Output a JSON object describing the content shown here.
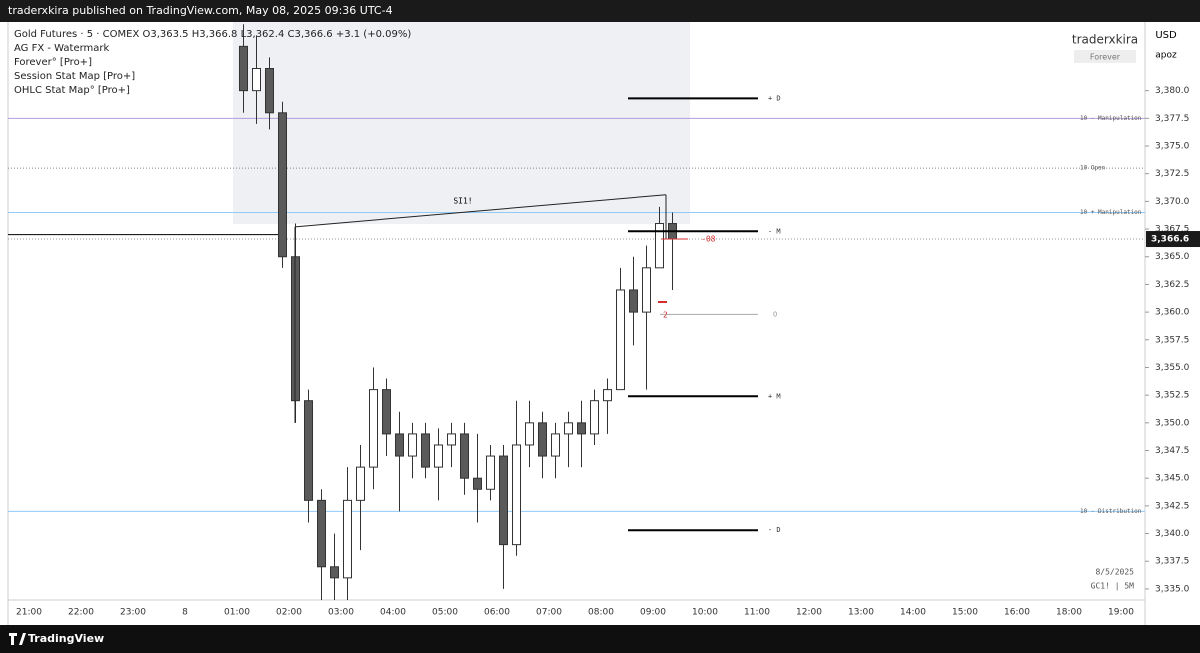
{
  "chart_data": {
    "type": "candlestick",
    "header": "traderxkira published on TradingView.com, May 08, 2025 09:36 UTC-4",
    "legend_lines": [
      "Gold Futures · 5 · COMEX  O3,363.5  H3,366.8  L3,362.4  C3,366.6  +3.1 (+0.09%)",
      "AG FX - Watermark",
      "Forever° [Pro+]",
      "Session Stat Map [Pro+]",
      "OHLC Stat Map° [Pro+]"
    ],
    "watermark": {
      "name": "traderxkira",
      "tag": "Forever"
    },
    "currency": "USD",
    "axis_user": "apoz",
    "footer_date": "8/5/2025",
    "footer_symbol": "GC1! | 5M",
    "brand": "TradingView",
    "ylim": [
      3334.0,
      3386.2
    ],
    "yticks": [
      {
        "value": 3335,
        "label": "3,335.0"
      },
      {
        "value": 3337.5,
        "label": "3,337.5"
      },
      {
        "value": 3340,
        "label": "3,340.0"
      },
      {
        "value": 3342.5,
        "label": "3,342.5"
      },
      {
        "value": 3345,
        "label": "3,345.0"
      },
      {
        "value": 3347.5,
        "label": "3,347.5"
      },
      {
        "value": 3350,
        "label": "3,350.0"
      },
      {
        "value": 3352.5,
        "label": "3,352.5"
      },
      {
        "value": 3355,
        "label": "3,355.0"
      },
      {
        "value": 3357.5,
        "label": "3,357.5"
      },
      {
        "value": 3360,
        "label": "3,360.0"
      },
      {
        "value": 3362.5,
        "label": "3,362.5"
      },
      {
        "value": 3365,
        "label": "3,365.0"
      },
      {
        "value": 3367.5,
        "label": "3,367.5"
      },
      {
        "value": 3370,
        "label": "3,370.0"
      },
      {
        "value": 3372.5,
        "label": "3,372.5"
      },
      {
        "value": 3375,
        "label": "3,375.0"
      },
      {
        "value": 3377.5,
        "label": "3,377.5"
      },
      {
        "value": 3380,
        "label": "3,380.0"
      }
    ],
    "xticks": [
      "21:00",
      "22:00",
      "23:00",
      "8",
      "01:00",
      "02:00",
      "03:00",
      "04:00",
      "05:00",
      "06:00",
      "07:00",
      "08:00",
      "09:00",
      "10:00",
      "11:00",
      "12:00",
      "13:00",
      "14:00",
      "15:00",
      "16:00",
      "18:00",
      "19:00"
    ],
    "candles": {
      "x": [
        "01:00",
        "01:15",
        "01:30",
        "01:45",
        "02:00",
        "02:15",
        "02:30",
        "02:45",
        "03:00",
        "03:15",
        "03:30",
        "03:45",
        "04:00",
        "04:15",
        "04:30",
        "04:45",
        "05:00",
        "05:15",
        "05:30",
        "05:45",
        "06:00",
        "06:15",
        "06:30",
        "06:45",
        "07:00",
        "07:15",
        "07:30",
        "07:45",
        "08:00",
        "08:15",
        "08:30",
        "08:45",
        "09:00",
        "09:15"
      ],
      "open": [
        3384,
        3380,
        3382,
        3378,
        3365,
        3352,
        3343,
        3337,
        3336,
        3343,
        3346,
        3353,
        3349,
        3347,
        3349,
        3346,
        3348,
        3349,
        3345,
        3344,
        3347,
        3339,
        3348,
        3350,
        3347,
        3349,
        3350,
        3349,
        3352,
        3353,
        3362,
        3360,
        3364,
        3368
      ],
      "high": [
        3386,
        3385,
        3383,
        3379,
        3368,
        3353,
        3344,
        3340,
        3346,
        3348,
        3355,
        3354,
        3351,
        3350,
        3350,
        3349.5,
        3350,
        3350,
        3349,
        3348,
        3348,
        3352,
        3352,
        3351,
        3350,
        3351,
        3352,
        3353,
        3354,
        3364,
        3365,
        3366,
        3369.5,
        3369
      ],
      "low": [
        3378,
        3377,
        3376.5,
        3364,
        3350,
        3341,
        3334,
        3334,
        3334,
        3338.5,
        3344,
        3347,
        3342,
        3345,
        3345,
        3343,
        3346,
        3343.5,
        3341,
        3343,
        3335,
        3338,
        3346,
        3345,
        3345,
        3346,
        3346,
        3348,
        3349,
        3353,
        3357,
        3353,
        3364,
        3362
      ],
      "close": [
        3380,
        3382,
        3378,
        3365,
        3352,
        3343,
        3337,
        3336,
        3343,
        3346,
        3353,
        3349,
        3347,
        3349,
        3346,
        3348,
        3349,
        3345,
        3344,
        3347,
        3339,
        3348,
        3350,
        3347,
        3349,
        3350,
        3349,
        3352,
        3353,
        3362,
        3360,
        3364,
        3368,
        3366.6
      ]
    },
    "session_levels": [
      {
        "label": "10 - Manipulation",
        "value": 3377.5,
        "color": "#b39ddb",
        "dash": false
      },
      {
        "label": "10 Open",
        "value": 3373,
        "color": "#888888",
        "dash": true
      },
      {
        "label": "10 + Manipulation",
        "value": 3369,
        "color": "#90caf9",
        "dash": false
      },
      {
        "label": "10 - Distribution",
        "value": 3342,
        "color": "#90caf9",
        "dash": false
      }
    ],
    "projection_levels": [
      {
        "label": "+ D",
        "value": 3379.3,
        "color": "#000000"
      },
      {
        "label": "- M",
        "value": 3367.3,
        "color": "#000000"
      },
      {
        "label": "O",
        "value": 3359.8,
        "color": "#aaaaaa"
      },
      {
        "label": "+ M",
        "value": 3352.4,
        "color": "#000000"
      },
      {
        "label": "- D",
        "value": 3340.3,
        "color": "#000000"
      }
    ],
    "prior_level": 3367.0,
    "spread_line": {
      "label": "SI1!",
      "start": 3367.7,
      "end": 3370.6
    },
    "last_price": {
      "value": 3366.6,
      "label": "3,366.6"
    },
    "red_notes": [
      "-08",
      "2"
    ]
  }
}
